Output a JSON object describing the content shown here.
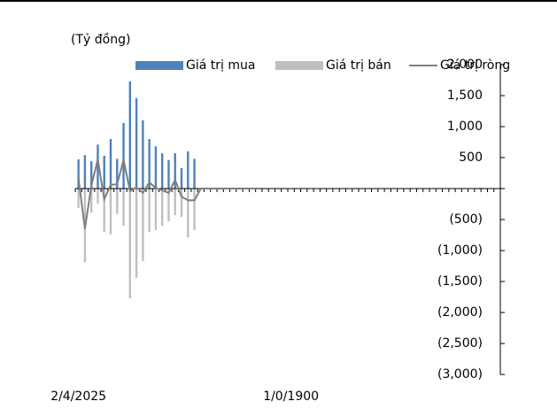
{
  "chart_data": {
    "type": "bar",
    "unit_label": "(Tỷ đồng)",
    "categories": [
      "2/4/2025",
      null,
      null,
      null,
      null,
      null,
      null,
      null,
      null,
      null,
      null,
      null,
      null,
      null,
      null,
      null,
      null,
      null,
      null,
      null,
      null,
      null,
      null,
      null,
      null,
      null,
      null,
      null,
      null,
      null,
      null,
      null,
      null,
      "1/0/1900",
      null,
      null,
      null,
      null,
      null,
      null,
      null,
      null,
      null,
      null,
      null,
      null,
      null,
      null,
      null,
      null,
      null,
      null,
      null,
      null,
      null,
      null,
      null,
      null,
      null,
      null,
      null,
      null,
      null,
      null,
      null,
      null
    ],
    "series": [
      {
        "name": "Giá trị mua",
        "kind": "bar",
        "color": "#4f81bd",
        "values": [
          470,
          540,
          440,
          710,
          530,
          800,
          480,
          1060,
          1730,
          1460,
          1100,
          800,
          680,
          570,
          460,
          570,
          330,
          600,
          480,
          null,
          null,
          null,
          null,
          null,
          null,
          null,
          null,
          null,
          null,
          null,
          null,
          null,
          null,
          null,
          null,
          null,
          null,
          null,
          null,
          null,
          null,
          null,
          null,
          null,
          null,
          null,
          null,
          null,
          null,
          null,
          null,
          null,
          null,
          null,
          null,
          null,
          null,
          null,
          null,
          null,
          null,
          null,
          null,
          null,
          null,
          null
        ]
      },
      {
        "name": "Giá trị bán",
        "kind": "bar",
        "color": "#bfbfbf",
        "values": [
          -310,
          -1190,
          -390,
          -240,
          -700,
          -740,
          -410,
          -600,
          -1770,
          -1440,
          -1170,
          -700,
          -670,
          -600,
          -530,
          -430,
          -460,
          -790,
          -670,
          null,
          null,
          null,
          null,
          null,
          null,
          null,
          null,
          null,
          null,
          null,
          null,
          null,
          null,
          null,
          null,
          null,
          null,
          null,
          null,
          null,
          null,
          null,
          null,
          null,
          null,
          null,
          null,
          null,
          null,
          null,
          null,
          null,
          null,
          null,
          null,
          null,
          null,
          null,
          null,
          null,
          null,
          null,
          null,
          null,
          null,
          null
        ]
      },
      {
        "name": "Giá trị ròng",
        "kind": "line",
        "color": "#7f7f7f",
        "values": [
          160,
          -650,
          50,
          470,
          -170,
          60,
          70,
          460,
          -40,
          20,
          -70,
          100,
          10,
          -30,
          -70,
          140,
          -130,
          -190,
          -190,
          0,
          0,
          0,
          0,
          0,
          0,
          0,
          0,
          0,
          0,
          null,
          null,
          null,
          null,
          null,
          null,
          null,
          null,
          null,
          null,
          null,
          null,
          null,
          null,
          null,
          null,
          null,
          null,
          null,
          null,
          null,
          null,
          null,
          null,
          null,
          null,
          null,
          null,
          null,
          null,
          null,
          null,
          null,
          null,
          null,
          null,
          null
        ]
      }
    ],
    "ylim": [
      -3000,
      2000
    ],
    "yticks": [
      {
        "value": 2000,
        "label": "2,000"
      },
      {
        "value": 1500,
        "label": "1,500"
      },
      {
        "value": 1000,
        "label": "1,000"
      },
      500,
      {
        "value": 0,
        "label": "-"
      },
      {
        "value": -500,
        "label": "(500)"
      },
      {
        "value": -1000,
        "label": "(1,000)"
      },
      {
        "value": -1500,
        "label": "(1,500)"
      },
      {
        "value": -2000,
        "label": "(2,000)"
      },
      {
        "value": -2500,
        "label": "(2,500)"
      },
      {
        "value": -3000,
        "label": "(3,000)"
      }
    ]
  }
}
